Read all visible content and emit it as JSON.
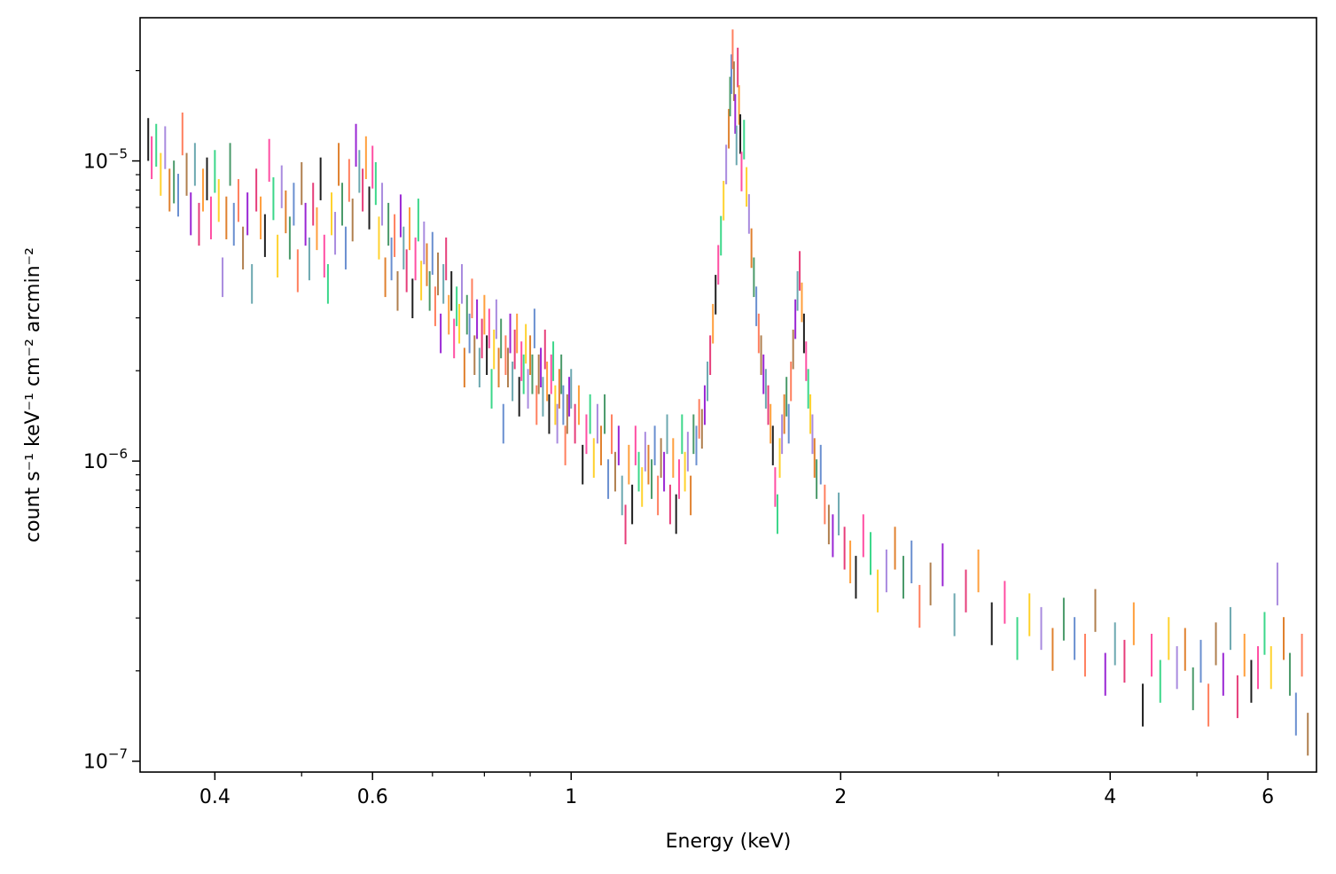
{
  "chart_data": {
    "type": "scatter",
    "title": "",
    "xlabel": "Energy (keV)",
    "ylabel": "count s⁻¹ keV⁻¹ cm⁻² arcmin⁻²",
    "xscale": "log",
    "yscale": "log",
    "xlim": [
      0.33,
      6.8
    ],
    "ylim": [
      9.2e-08,
      3e-05
    ],
    "grid": false,
    "legend": "none",
    "x_ticks": [
      {
        "value": 0.4,
        "label": "0.4"
      },
      {
        "value": 0.6,
        "label": "0.6"
      },
      {
        "value": 1,
        "label": "1"
      },
      {
        "value": 2,
        "label": "2"
      },
      {
        "value": 4,
        "label": "4"
      },
      {
        "value": 6,
        "label": "6"
      }
    ],
    "y_ticks": [
      {
        "value": 1e-07,
        "base": "10",
        "exp": "−7"
      },
      {
        "value": 1e-06,
        "base": "10",
        "exp": "−6"
      },
      {
        "value": 1e-05,
        "base": "10",
        "exp": "−5"
      }
    ],
    "marker": "vertical error bars",
    "palette": [
      "#1f1f1f",
      "#ff4fa3",
      "#3cd78a",
      "#ffd22e",
      "#a98bdf",
      "#e0812f",
      "#4a9a6a",
      "#6a8fd0",
      "#ff7f5e",
      "#b07f4e",
      "#9a27d4",
      "#6ca8b0",
      "#e63e7a",
      "#ff9f3d"
    ],
    "points": [
      [
        0.337,
        1.15e-05,
        0.13
      ],
      [
        0.34,
        1e-05,
        0.13
      ],
      [
        0.344,
        1.1e-05,
        0.13
      ],
      [
        0.348,
        8.8e-06,
        0.13
      ],
      [
        0.352,
        1.08e-05,
        0.13
      ],
      [
        0.356,
        7.8e-06,
        0.13
      ],
      [
        0.36,
        8.3e-06,
        0.13
      ],
      [
        0.364,
        7.5e-06,
        0.13
      ],
      [
        0.368,
        1.2e-05,
        0.13
      ],
      [
        0.372,
        8.8e-06,
        0.13
      ],
      [
        0.376,
        6.5e-06,
        0.13
      ],
      [
        0.38,
        9.5e-06,
        0.13
      ],
      [
        0.384,
        6e-06,
        0.13
      ],
      [
        0.388,
        7.8e-06,
        0.13
      ],
      [
        0.392,
        8.5e-06,
        0.13
      ],
      [
        0.396,
        6.3e-06,
        0.13
      ],
      [
        0.4,
        9e-06,
        0.13
      ],
      [
        0.404,
        7.2e-06,
        0.13
      ],
      [
        0.408,
        4e-06,
        0.12
      ],
      [
        0.412,
        6.3e-06,
        0.13
      ],
      [
        0.416,
        9.5e-06,
        0.13
      ],
      [
        0.42,
        6e-06,
        0.13
      ],
      [
        0.425,
        7.2e-06,
        0.13
      ],
      [
        0.43,
        5e-06,
        0.13
      ],
      [
        0.435,
        6.5e-06,
        0.13
      ],
      [
        0.44,
        3.8e-06,
        0.12
      ],
      [
        0.445,
        7.8e-06,
        0.13
      ],
      [
        0.45,
        6.3e-06,
        0.13
      ],
      [
        0.455,
        5.5e-06,
        0.13
      ],
      [
        0.46,
        9.8e-06,
        0.13
      ],
      [
        0.465,
        7.3e-06,
        0.13
      ],
      [
        0.47,
        4.7e-06,
        0.13
      ],
      [
        0.475,
        8e-06,
        0.13
      ],
      [
        0.48,
        6.6e-06,
        0.13
      ],
      [
        0.485,
        5.4e-06,
        0.13
      ],
      [
        0.49,
        7e-06,
        0.13
      ],
      [
        0.495,
        4.2e-06,
        0.13
      ],
      [
        0.5,
        8.2e-06,
        0.13
      ],
      [
        0.505,
        6e-06,
        0.13
      ],
      [
        0.51,
        4.6e-06,
        0.13
      ],
      [
        0.515,
        7e-06,
        0.13
      ],
      [
        0.52,
        5.8e-06,
        0.13
      ],
      [
        0.525,
        8.5e-06,
        0.13
      ],
      [
        0.53,
        4.7e-06,
        0.13
      ],
      [
        0.535,
        3.8e-06,
        0.12
      ],
      [
        0.54,
        6.5e-06,
        0.13
      ],
      [
        0.545,
        5.6e-06,
        0.13
      ],
      [
        0.55,
        9.5e-06,
        0.13
      ],
      [
        0.555,
        7e-06,
        0.13
      ],
      [
        0.56,
        5e-06,
        0.13
      ],
      [
        0.565,
        8.4e-06,
        0.13
      ],
      [
        0.57,
        6.2e-06,
        0.13
      ],
      [
        0.575,
        1.1e-05,
        0.13
      ],
      [
        0.58,
        9e-06,
        0.13
      ],
      [
        0.585,
        7.8e-06,
        0.13
      ],
      [
        0.59,
        1e-05,
        0.13
      ],
      [
        0.595,
        6.8e-06,
        0.13
      ],
      [
        0.6,
        9.3e-06,
        0.13
      ],
      [
        0.605,
        8.2e-06,
        0.13
      ],
      [
        0.61,
        5.4e-06,
        0.13
      ],
      [
        0.615,
        7e-06,
        0.13
      ],
      [
        0.62,
        4e-06,
        0.12
      ],
      [
        0.625,
        6e-06,
        0.13
      ],
      [
        0.63,
        4.6e-06,
        0.13
      ],
      [
        0.635,
        5.5e-06,
        0.13
      ],
      [
        0.64,
        3.6e-06,
        0.12
      ],
      [
        0.645,
        6.4e-06,
        0.13
      ],
      [
        0.65,
        5e-06,
        0.13
      ],
      [
        0.655,
        4.2e-06,
        0.13
      ],
      [
        0.66,
        5.8e-06,
        0.13
      ],
      [
        0.665,
        3.4e-06,
        0.12
      ],
      [
        0.67,
        4.6e-06,
        0.13
      ],
      [
        0.675,
        6.2e-06,
        0.13
      ],
      [
        0.68,
        3.9e-06,
        0.12
      ],
      [
        0.685,
        5.2e-06,
        0.13
      ],
      [
        0.69,
        4.4e-06,
        0.13
      ],
      [
        0.695,
        3.6e-06,
        0.12
      ],
      [
        0.7,
        4.8e-06,
        0.13
      ],
      [
        0.705,
        3.2e-06,
        0.12
      ],
      [
        0.71,
        4.1e-06,
        0.13
      ],
      [
        0.715,
        2.6e-06,
        0.12
      ],
      [
        0.72,
        3.8e-06,
        0.12
      ],
      [
        0.725,
        4.6e-06,
        0.13
      ],
      [
        0.73,
        3e-06,
        0.12
      ],
      [
        0.735,
        3.6e-06,
        0.12
      ],
      [
        0.74,
        2.5e-06,
        0.12
      ],
      [
        0.745,
        3.2e-06,
        0.12
      ],
      [
        0.75,
        2.8e-06,
        0.12
      ],
      [
        0.755,
        3.8e-06,
        0.12
      ],
      [
        0.76,
        2e-06,
        0.12
      ],
      [
        0.765,
        3e-06,
        0.12
      ],
      [
        0.77,
        2.6e-06,
        0.12
      ],
      [
        0.775,
        3.4e-06,
        0.12
      ],
      [
        0.78,
        2.2e-06,
        0.12
      ],
      [
        0.785,
        2.9e-06,
        0.12
      ],
      [
        0.79,
        2e-06,
        0.12
      ],
      [
        0.795,
        2.5e-06,
        0.12
      ],
      [
        0.8,
        3e-06,
        0.12
      ],
      [
        0.805,
        2.2e-06,
        0.12
      ],
      [
        0.81,
        2.7e-06,
        0.12
      ],
      [
        0.815,
        1.7e-06,
        0.12
      ],
      [
        0.82,
        2.3e-06,
        0.12
      ],
      [
        0.825,
        2.9e-06,
        0.12
      ],
      [
        0.83,
        2e-06,
        0.12
      ],
      [
        0.835,
        2.5e-06,
        0.12
      ],
      [
        0.84,
        1.3e-06,
        0.12
      ],
      [
        0.845,
        2.2e-06,
        0.12
      ],
      [
        0.85,
        2e-06,
        0.12
      ],
      [
        0.855,
        2.6e-06,
        0.12
      ],
      [
        0.86,
        1.8e-06,
        0.12
      ],
      [
        0.865,
        2.3e-06,
        0.12
      ],
      [
        0.87,
        2.6e-06,
        0.12
      ],
      [
        0.875,
        1.6e-06,
        0.12
      ],
      [
        0.88,
        2.1e-06,
        0.12
      ],
      [
        0.885,
        1.9e-06,
        0.12
      ],
      [
        0.89,
        2.4e-06,
        0.12
      ],
      [
        0.895,
        1.7e-06,
        0.12
      ],
      [
        0.9,
        2.2e-06,
        0.12
      ],
      [
        0.905,
        1.9e-06,
        0.12
      ],
      [
        0.91,
        2.7e-06,
        0.12
      ],
      [
        0.915,
        1.5e-06,
        0.12
      ],
      [
        0.92,
        1.9e-06,
        0.12
      ],
      [
        0.925,
        2e-06,
        0.12
      ],
      [
        0.93,
        1.6e-06,
        0.12
      ],
      [
        0.935,
        2.3e-06,
        0.12
      ],
      [
        0.94,
        1.8e-06,
        0.12
      ],
      [
        0.945,
        1.4e-06,
        0.12
      ],
      [
        0.95,
        1.9e-06,
        0.12
      ],
      [
        0.955,
        2.1e-06,
        0.12
      ],
      [
        0.96,
        1.5e-06,
        0.12
      ],
      [
        0.965,
        1.3e-06,
        0.12
      ],
      [
        0.97,
        1.7e-06,
        0.12
      ],
      [
        0.975,
        1.9e-06,
        0.12
      ],
      [
        0.98,
        1.5e-06,
        0.12
      ],
      [
        0.985,
        1.1e-06,
        0.12
      ],
      [
        0.99,
        1.4e-06,
        0.12
      ],
      [
        0.995,
        1.6e-06,
        0.12
      ],
      [
        1.0,
        1.7e-06,
        0.12
      ],
      [
        1.01,
        1.3e-06,
        0.12
      ],
      [
        1.02,
        1.5e-06,
        0.12
      ],
      [
        1.03,
        9.5e-07,
        0.12
      ],
      [
        1.04,
        1.2e-06,
        0.12
      ],
      [
        1.05,
        1.4e-06,
        0.12
      ],
      [
        1.06,
        1e-06,
        0.12
      ],
      [
        1.07,
        1.3e-06,
        0.12
      ],
      [
        1.08,
        1.1e-06,
        0.12
      ],
      [
        1.09,
        1.4e-06,
        0.12
      ],
      [
        1.1,
        8.5e-07,
        0.12
      ],
      [
        1.11,
        1.2e-06,
        0.12
      ],
      [
        1.12,
        9e-07,
        0.12
      ],
      [
        1.13,
        1.1e-06,
        0.12
      ],
      [
        1.14,
        7.5e-07,
        0.12
      ],
      [
        1.15,
        6e-07,
        0.12
      ],
      [
        1.16,
        9.5e-07,
        0.12
      ],
      [
        1.17,
        7e-07,
        0.12
      ],
      [
        1.18,
        1.1e-06,
        0.12
      ],
      [
        1.19,
        9e-07,
        0.12
      ],
      [
        1.2,
        8e-07,
        0.12
      ],
      [
        1.21,
        1.05e-06,
        0.12
      ],
      [
        1.22,
        9.5e-07,
        0.12
      ],
      [
        1.23,
        8.5e-07,
        0.12
      ],
      [
        1.24,
        1.1e-06,
        0.12
      ],
      [
        1.25,
        7.5e-07,
        0.12
      ],
      [
        1.26,
        1e-06,
        0.12
      ],
      [
        1.27,
        9e-07,
        0.12
      ],
      [
        1.28,
        1.2e-06,
        0.12
      ],
      [
        1.29,
        7e-07,
        0.12
      ],
      [
        1.3,
        1e-06,
        0.12
      ],
      [
        1.31,
        6.5e-07,
        0.12
      ],
      [
        1.32,
        8.5e-07,
        0.12
      ],
      [
        1.33,
        1.2e-06,
        0.12
      ],
      [
        1.34,
        9e-07,
        0.12
      ],
      [
        1.35,
        1.05e-06,
        0.12
      ],
      [
        1.36,
        7.5e-07,
        0.12
      ],
      [
        1.37,
        1.2e-06,
        0.12
      ],
      [
        1.38,
        1.1e-06,
        0.12
      ],
      [
        1.39,
        1.35e-06,
        0.12
      ],
      [
        1.4,
        1.25e-06,
        0.12
      ],
      [
        1.41,
        1.5e-06,
        0.12
      ],
      [
        1.42,
        1.8e-06,
        0.12
      ],
      [
        1.43,
        2.2e-06,
        0.12
      ],
      [
        1.44,
        2.8e-06,
        0.12
      ],
      [
        1.45,
        3.5e-06,
        0.12
      ],
      [
        1.46,
        4.4e-06,
        0.12
      ],
      [
        1.47,
        5.5e-06,
        0.12
      ],
      [
        1.48,
        7.2e-06,
        0.12
      ],
      [
        1.49,
        9.5e-06,
        0.12
      ],
      [
        1.5,
        1.25e-05,
        0.12
      ],
      [
        1.505,
        1.6e-05,
        0.12
      ],
      [
        1.51,
        1.9e-05,
        0.12
      ],
      [
        1.515,
        2.3e-05,
        0.12
      ],
      [
        1.52,
        1.8e-05,
        0.12
      ],
      [
        1.525,
        1.4e-05,
        0.12
      ],
      [
        1.53,
        1.1e-05,
        0.12
      ],
      [
        1.535,
        2e-05,
        0.12
      ],
      [
        1.54,
        1.5e-05,
        0.12
      ],
      [
        1.545,
        1.2e-05,
        0.12
      ],
      [
        1.55,
        9e-06,
        0.12
      ],
      [
        1.56,
        1.15e-05,
        0.12
      ],
      [
        1.57,
        8e-06,
        0.12
      ],
      [
        1.58,
        6.5e-06,
        0.12
      ],
      [
        1.59,
        5e-06,
        0.12
      ],
      [
        1.6,
        4e-06,
        0.12
      ],
      [
        1.61,
        3.2e-06,
        0.12
      ],
      [
        1.62,
        2.6e-06,
        0.12
      ],
      [
        1.63,
        2.2e-06,
        0.12
      ],
      [
        1.64,
        1.9e-06,
        0.12
      ],
      [
        1.65,
        1.7e-06,
        0.12
      ],
      [
        1.66,
        1.5e-06,
        0.12
      ],
      [
        1.67,
        1.3e-06,
        0.12
      ],
      [
        1.68,
        1.1e-06,
        0.12
      ],
      [
        1.69,
        8e-07,
        0.12
      ],
      [
        1.7,
        6.5e-07,
        0.12
      ],
      [
        1.71,
        1e-06,
        0.12
      ],
      [
        1.72,
        1.2e-06,
        0.12
      ],
      [
        1.73,
        1.4e-06,
        0.12
      ],
      [
        1.74,
        1.6e-06,
        0.12
      ],
      [
        1.75,
        1.3e-06,
        0.12
      ],
      [
        1.76,
        1.8e-06,
        0.12
      ],
      [
        1.77,
        2.3e-06,
        0.12
      ],
      [
        1.78,
        2.9e-06,
        0.12
      ],
      [
        1.79,
        3.6e-06,
        0.12
      ],
      [
        1.8,
        4.2e-06,
        0.12
      ],
      [
        1.81,
        3.3e-06,
        0.12
      ],
      [
        1.82,
        2.6e-06,
        0.12
      ],
      [
        1.83,
        2.1e-06,
        0.12
      ],
      [
        1.84,
        1.7e-06,
        0.12
      ],
      [
        1.85,
        1.4e-06,
        0.12
      ],
      [
        1.86,
        1.2e-06,
        0.12
      ],
      [
        1.87,
        1e-06,
        0.12
      ],
      [
        1.88,
        8.5e-07,
        0.12
      ],
      [
        1.9,
        9.5e-07,
        0.12
      ],
      [
        1.92,
        7e-07,
        0.12
      ],
      [
        1.94,
        6e-07,
        0.12
      ],
      [
        1.96,
        5.5e-07,
        0.13
      ],
      [
        1.99,
        6.5e-07,
        0.13
      ],
      [
        2.02,
        5e-07,
        0.13
      ],
      [
        2.05,
        4.5e-07,
        0.13
      ],
      [
        2.08,
        4e-07,
        0.13
      ],
      [
        2.12,
        5.5e-07,
        0.13
      ],
      [
        2.16,
        4.8e-07,
        0.13
      ],
      [
        2.2,
        3.6e-07,
        0.13
      ],
      [
        2.25,
        4.2e-07,
        0.13
      ],
      [
        2.3,
        5e-07,
        0.13
      ],
      [
        2.35,
        4e-07,
        0.13
      ],
      [
        2.4,
        4.5e-07,
        0.13
      ],
      [
        2.45,
        3.2e-07,
        0.13
      ],
      [
        2.52,
        3.8e-07,
        0.13
      ],
      [
        2.6,
        4.4e-07,
        0.13
      ],
      [
        2.68,
        3e-07,
        0.13
      ],
      [
        2.76,
        3.6e-07,
        0.13
      ],
      [
        2.85,
        4.2e-07,
        0.13
      ],
      [
        2.95,
        2.8e-07,
        0.13
      ],
      [
        3.05,
        3.3e-07,
        0.13
      ],
      [
        3.15,
        2.5e-07,
        0.13
      ],
      [
        3.25,
        3e-07,
        0.13
      ],
      [
        3.35,
        2.7e-07,
        0.13
      ],
      [
        3.45,
        2.3e-07,
        0.13
      ],
      [
        3.55,
        2.9e-07,
        0.13
      ],
      [
        3.65,
        2.5e-07,
        0.13
      ],
      [
        3.75,
        2.2e-07,
        0.13
      ],
      [
        3.85,
        3.1e-07,
        0.13
      ],
      [
        3.95,
        1.9e-07,
        0.13
      ],
      [
        4.05,
        2.4e-07,
        0.13
      ],
      [
        4.15,
        2.1e-07,
        0.13
      ],
      [
        4.25,
        2.8e-07,
        0.13
      ],
      [
        4.35,
        1.5e-07,
        0.13
      ],
      [
        4.45,
        2.2e-07,
        0.13
      ],
      [
        4.55,
        1.8e-07,
        0.13
      ],
      [
        4.65,
        2.5e-07,
        0.13
      ],
      [
        4.75,
        2e-07,
        0.13
      ],
      [
        4.85,
        2.3e-07,
        0.13
      ],
      [
        4.95,
        1.7e-07,
        0.13
      ],
      [
        5.05,
        2.1e-07,
        0.13
      ],
      [
        5.15,
        1.5e-07,
        0.13
      ],
      [
        5.25,
        2.4e-07,
        0.13
      ],
      [
        5.35,
        1.9e-07,
        0.13
      ],
      [
        5.45,
        2.7e-07,
        0.13
      ],
      [
        5.55,
        1.6e-07,
        0.13
      ],
      [
        5.65,
        2.2e-07,
        0.13
      ],
      [
        5.75,
        1.8e-07,
        0.13
      ],
      [
        5.85,
        2e-07,
        0.13
      ],
      [
        5.95,
        2.6e-07,
        0.13
      ],
      [
        6.05,
        2e-07,
        0.13
      ],
      [
        6.15,
        3.8e-07,
        0.13
      ],
      [
        6.25,
        2.5e-07,
        0.13
      ],
      [
        6.35,
        1.9e-07,
        0.13
      ],
      [
        6.45,
        1.4e-07,
        0.13
      ],
      [
        6.55,
        2.2e-07,
        0.13
      ],
      [
        6.65,
        1.2e-07,
        0.13
      ]
    ]
  }
}
